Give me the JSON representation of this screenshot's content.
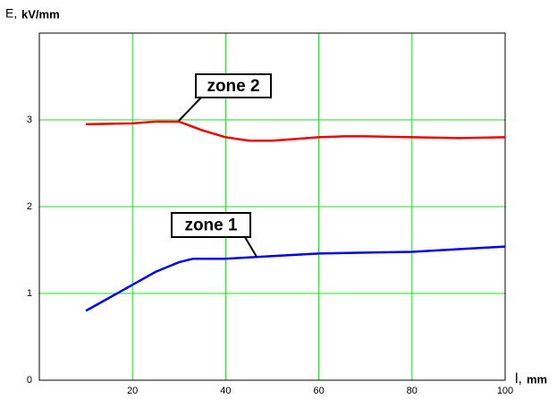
{
  "chart_data": {
    "type": "line",
    "y_label": "E,",
    "y_unit": "kV/mm",
    "x_label": "l,",
    "x_unit": "mm",
    "xlim": [
      0,
      100
    ],
    "xticks": [
      20,
      40,
      60,
      80,
      100
    ],
    "ylim": [
      0,
      4
    ],
    "yticks": [
      0,
      1,
      2,
      3
    ],
    "grid": true,
    "series": [
      {
        "name": "zone 2",
        "color": "#ee0000",
        "x": [
          10,
          20,
          25,
          30,
          35,
          40,
          45,
          50,
          55,
          60,
          65,
          70,
          80,
          90,
          100
        ],
        "values": [
          2.95,
          2.96,
          2.98,
          2.98,
          2.88,
          2.8,
          2.76,
          2.76,
          2.78,
          2.8,
          2.81,
          2.81,
          2.8,
          2.79,
          2.8
        ]
      },
      {
        "name": "zone 1",
        "color": "#0000ee",
        "x": [
          10,
          15,
          20,
          25,
          30,
          33,
          40,
          50,
          60,
          70,
          80,
          90,
          100
        ],
        "values": [
          0.8,
          0.95,
          1.1,
          1.25,
          1.36,
          1.4,
          1.4,
          1.43,
          1.46,
          1.47,
          1.48,
          1.51,
          1.54
        ]
      }
    ]
  }
}
